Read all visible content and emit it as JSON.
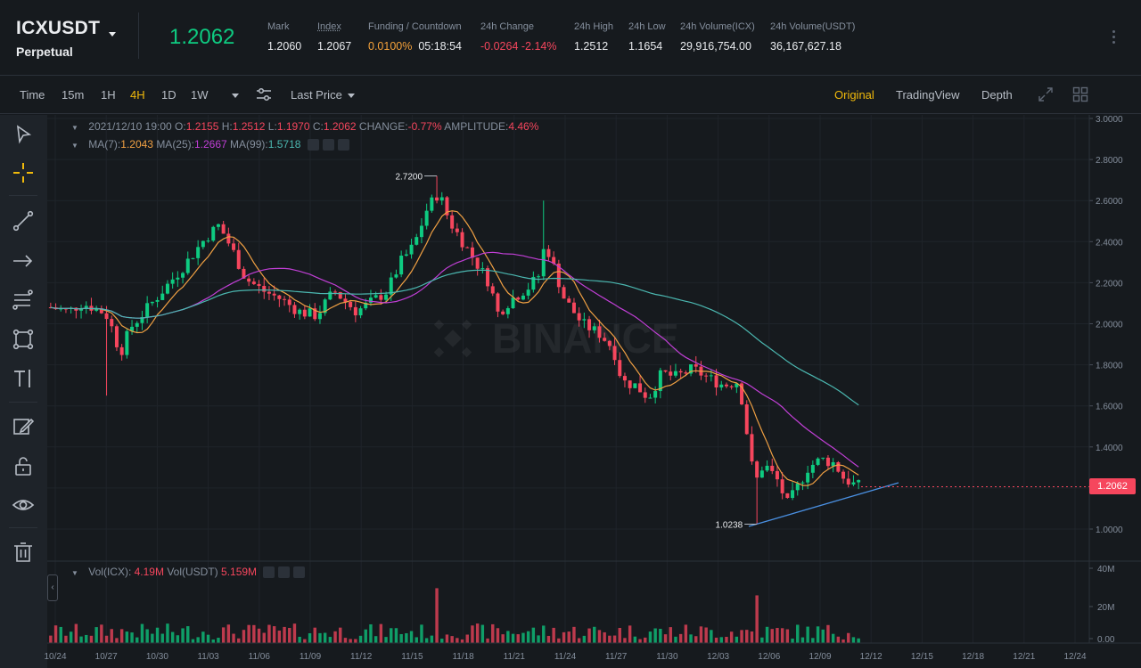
{
  "header": {
    "symbol": "ICXUSDT",
    "contract_type": "Perpetual",
    "last_price": "1.2062",
    "stats": [
      {
        "label": "Mark",
        "value": "1.2060"
      },
      {
        "label": "Index",
        "value": "1.2067"
      },
      {
        "label": "Funding / Countdown",
        "rate": "0.0100%",
        "countdown": "05:18:54"
      },
      {
        "label": "24h Change",
        "value": "-0.0264 -2.14%"
      },
      {
        "label": "24h High",
        "value": "1.2512"
      },
      {
        "label": "24h Low",
        "value": "1.1654"
      },
      {
        "label": "24h Volume(ICX)",
        "value": "29,916,754.00"
      },
      {
        "label": "24h Volume(USDT)",
        "value": "36,167,627.18"
      }
    ]
  },
  "toolbar": {
    "intervals": [
      "Time",
      "15m",
      "1H",
      "4H",
      "1D",
      "1W"
    ],
    "active_interval": "4H",
    "price_type": "Last Price",
    "views": [
      "Original",
      "TradingView",
      "Depth"
    ],
    "active_view": "Original"
  },
  "tools": [
    "cursor-icon",
    "crosshair-icon",
    "trendline-icon",
    "arrow-icon",
    "fib-icon",
    "shape-icon",
    "text-icon",
    "brush-icon",
    "lock-icon",
    "eye-icon",
    "trash-icon"
  ],
  "legend": {
    "date": "2021/12/10 19:00",
    "o_label": "O:",
    "o": "1.2155",
    "h_label": "H:",
    "h": "1.2512",
    "l_label": "L:",
    "l": "1.1970",
    "c_label": "C:",
    "c": "1.2062",
    "change_label": "CHANGE:",
    "change": "-0.77%",
    "amp_label": "AMPLITUDE:",
    "amp": "4.46%",
    "ma7_label": "MA(7):",
    "ma7": "1.2043",
    "ma25_label": "MA(25):",
    "ma25": "1.2667",
    "ma99_label": "MA(99):",
    "ma99": "1.5718",
    "vol_label": "Vol(ICX):",
    "vol_icx": "4.19M",
    "volusdt_label": "Vol(USDT)",
    "vol_usdt": "5.159M"
  },
  "chart_data": {
    "type": "candlestick",
    "y_ticks": [
      "3.0000",
      "2.8000",
      "2.6000",
      "2.4000",
      "2.2000",
      "2.0000",
      "1.8000",
      "1.6000",
      "1.4000",
      "1.2000",
      "1.0000"
    ],
    "x_ticks": [
      "10/24",
      "10/27",
      "10/30",
      "11/03",
      "11/06",
      "11/09",
      "11/12",
      "11/15",
      "11/18",
      "11/21",
      "11/24",
      "11/27",
      "11/30",
      "12/03",
      "12/06",
      "12/09",
      "12/12",
      "12/15",
      "12/18",
      "12/21",
      "12/24"
    ],
    "vol_ticks": [
      "40M",
      "20M",
      "0.00"
    ],
    "high_marker": "2.7200",
    "low_marker": "1.0238",
    "current_price": "1.2062",
    "watermark": "BINANCE",
    "colors": {
      "up": "#0ecb81",
      "down": "#f6465d",
      "ma7": "#f0a043",
      "ma25": "#c13fd6",
      "ma99": "#4bb7b0",
      "trend": "#4a90e2"
    }
  }
}
